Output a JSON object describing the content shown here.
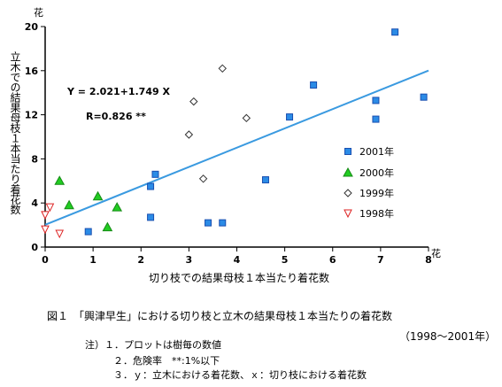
{
  "chart_data": {
    "type": "scatter",
    "xlabel": "切り枝での結果母枝１本当たり着花数",
    "xunit": "花",
    "ylabel": "立木での結果母枝１本当たり着花数",
    "yunit": "花",
    "xlim": [
      0,
      8
    ],
    "ylim": [
      0,
      20
    ],
    "xticks": [
      0,
      1,
      2,
      3,
      4,
      5,
      6,
      7,
      8
    ],
    "yticks": [
      0,
      4,
      8,
      12,
      16,
      20
    ],
    "legend_position": "right",
    "series": [
      {
        "name": "2001年",
        "marker": "square",
        "color": "#2b8be6",
        "points": [
          [
            0.9,
            1.4
          ],
          [
            2.2,
            2.7
          ],
          [
            2.2,
            5.5
          ],
          [
            2.3,
            6.6
          ],
          [
            3.4,
            2.2
          ],
          [
            3.7,
            2.2
          ],
          [
            4.6,
            6.1
          ],
          [
            5.1,
            11.8
          ],
          [
            5.6,
            14.7
          ],
          [
            6.9,
            13.3
          ],
          [
            6.9,
            11.6
          ],
          [
            7.3,
            19.5
          ],
          [
            7.9,
            13.6
          ]
        ]
      },
      {
        "name": "2000年",
        "marker": "triangle",
        "color": "#22cc22",
        "points": [
          [
            0.3,
            6.0
          ],
          [
            0.5,
            3.8
          ],
          [
            1.1,
            4.6
          ],
          [
            1.3,
            1.8
          ],
          [
            1.5,
            3.6
          ]
        ]
      },
      {
        "name": "1999年",
        "marker": "diamond-open",
        "color": "#333333",
        "points": [
          [
            3.0,
            10.2
          ],
          [
            3.1,
            13.2
          ],
          [
            3.3,
            6.2
          ],
          [
            3.7,
            16.2
          ],
          [
            4.2,
            11.7
          ]
        ]
      },
      {
        "name": "1998年",
        "marker": "triangle-down-open",
        "color": "#dd2222",
        "points": [
          [
            0.0,
            2.9
          ],
          [
            0.0,
            1.6
          ],
          [
            0.1,
            3.6
          ],
          [
            0.3,
            1.2
          ]
        ]
      }
    ],
    "regression": {
      "equation": "Y = 2.021+1.749 X",
      "r_text": "R=0.826 **",
      "intercept": 2.021,
      "slope": 1.749,
      "x_range": [
        0,
        8
      ],
      "color": "#3a9ae0"
    }
  },
  "figure_caption": {
    "line1": "図１　「興津早生」における切り枝と立木の結果母枝１本当たりの着花数",
    "line2": "（1998～2001年）"
  },
  "notes": [
    "注）１．プロットは樹毎の数値",
    "２．危険率　**:1%以下",
    "３．ｙ：立木における着花数、ｘ：切り枝における着花数"
  ]
}
